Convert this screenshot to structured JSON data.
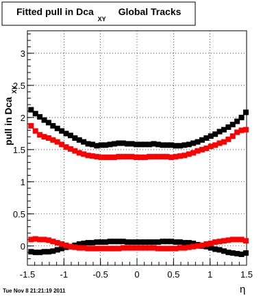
{
  "title": {
    "main": "Fitted pull in Dca",
    "subscript": "XY",
    "suffix": "Global Tracks"
  },
  "timestamp": "Tue Nov  8 21:21:19 2011",
  "chart_data": {
    "type": "scatter",
    "xlabel": "η",
    "ylabel": {
      "main": "pull in Dca",
      "subscript": "XY"
    },
    "xlim": [
      -1.5,
      1.5
    ],
    "ylim": [
      -0.3,
      3.35
    ],
    "grid": true,
    "x_ticks": [
      "-1.5",
      "-1",
      "-0.5",
      "0",
      "0.5",
      "1",
      "1.5"
    ],
    "y_ticks": [
      "0",
      "0.5",
      "1",
      "1.5",
      "2",
      "2.5",
      "3"
    ],
    "x_tick_values": [
      -1.5,
      -1,
      -0.5,
      0,
      0.5,
      1,
      1.5
    ],
    "y_tick_values": [
      0,
      0.5,
      1,
      1.5,
      2,
      2.5,
      3
    ],
    "x": [
      -1.45,
      -1.39,
      -1.33,
      -1.27,
      -1.21,
      -1.15,
      -1.09,
      -1.03,
      -0.97,
      -0.91,
      -0.85,
      -0.79,
      -0.73,
      -0.67,
      -0.61,
      -0.55,
      -0.49,
      -0.43,
      -0.37,
      -0.31,
      -0.25,
      -0.19,
      -0.13,
      -0.07,
      -0.01,
      0.05,
      0.11,
      0.17,
      0.23,
      0.29,
      0.35,
      0.41,
      0.47,
      0.53,
      0.59,
      0.65,
      0.71,
      0.77,
      0.83,
      0.89,
      0.95,
      1.01,
      1.07,
      1.13,
      1.19,
      1.25,
      1.31,
      1.37,
      1.43,
      1.49
    ],
    "series": [
      {
        "color": "#000000",
        "marker": "square",
        "values": [
          2.12,
          2.06,
          2.01,
          1.96,
          1.92,
          1.87,
          1.83,
          1.79,
          1.75,
          1.72,
          1.68,
          1.65,
          1.62,
          1.59,
          1.58,
          1.56,
          1.57,
          1.57,
          1.58,
          1.59,
          1.6,
          1.6,
          1.59,
          1.59,
          1.58,
          1.58,
          1.58,
          1.58,
          1.59,
          1.58,
          1.57,
          1.57,
          1.57,
          1.56,
          1.56,
          1.57,
          1.58,
          1.6,
          1.62,
          1.65,
          1.68,
          1.71,
          1.74,
          1.78,
          1.81,
          1.85,
          1.89,
          1.94,
          2.0,
          2.08
        ]
      },
      {
        "color": "#ff0000",
        "marker": "square",
        "values": [
          1.87,
          1.79,
          1.73,
          1.7,
          1.68,
          1.65,
          1.62,
          1.58,
          1.54,
          1.51,
          1.48,
          1.45,
          1.43,
          1.41,
          1.4,
          1.39,
          1.38,
          1.38,
          1.38,
          1.38,
          1.39,
          1.39,
          1.39,
          1.39,
          1.38,
          1.38,
          1.38,
          1.39,
          1.39,
          1.39,
          1.39,
          1.39,
          1.38,
          1.39,
          1.4,
          1.41,
          1.43,
          1.45,
          1.48,
          1.5,
          1.52,
          1.55,
          1.57,
          1.6,
          1.62,
          1.66,
          1.71,
          1.77,
          1.8,
          1.81
        ]
      },
      {
        "color": "#000000",
        "marker": "square",
        "values": [
          -0.09,
          -0.1,
          -0.1,
          -0.09,
          -0.09,
          -0.08,
          -0.06,
          -0.04,
          -0.02,
          -0.01,
          0.01,
          0.03,
          0.04,
          0.05,
          0.05,
          0.06,
          0.06,
          0.06,
          0.07,
          0.07,
          0.07,
          0.07,
          0.06,
          0.06,
          0.06,
          0.06,
          0.06,
          0.06,
          0.06,
          0.06,
          0.07,
          0.07,
          0.07,
          0.06,
          0.06,
          0.05,
          0.05,
          0.04,
          0.02,
          0.0,
          -0.01,
          -0.03,
          -0.05,
          -0.06,
          -0.08,
          -0.1,
          -0.11,
          -0.12,
          -0.13,
          -0.11
        ]
      },
      {
        "color": "#ff0000",
        "marker": "square",
        "values": [
          0.1,
          0.11,
          0.1,
          0.1,
          0.09,
          0.07,
          0.05,
          0.03,
          0.01,
          -0.01,
          -0.02,
          -0.03,
          -0.03,
          -0.04,
          -0.04,
          -0.04,
          -0.04,
          -0.04,
          -0.04,
          -0.04,
          -0.04,
          -0.03,
          -0.03,
          -0.03,
          -0.03,
          -0.03,
          -0.03,
          -0.03,
          -0.03,
          -0.04,
          -0.04,
          -0.04,
          -0.04,
          -0.04,
          -0.03,
          -0.03,
          -0.02,
          -0.01,
          0.0,
          0.01,
          0.03,
          0.04,
          0.06,
          0.07,
          0.08,
          0.09,
          0.1,
          0.1,
          0.1,
          0.08
        ]
      }
    ]
  }
}
